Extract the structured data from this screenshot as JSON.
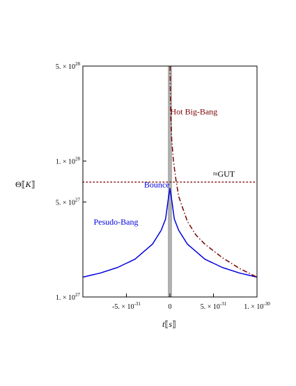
{
  "chart_data": {
    "type": "line",
    "yscale": "log",
    "xlim": [
      -1e-30,
      1e-30
    ],
    "ylim": [
      1e+27,
      5e+28
    ],
    "grid": false,
    "xlabel": {
      "main": "t",
      "unit": "s"
    },
    "ylabel": {
      "main": "Θ",
      "unit": "K"
    },
    "x_ticks": [
      {
        "value": -5e-31,
        "mant": "-5. × 10",
        "exp": "-31"
      },
      {
        "value": 0,
        "mant": "0",
        "exp": ""
      },
      {
        "value": 5e-31,
        "mant": "5. × 10",
        "exp": "-31"
      },
      {
        "value": 1e-30,
        "mant": "1. × 10",
        "exp": "-30"
      }
    ],
    "y_ticks": [
      {
        "value": 1e+27,
        "mant": "1. × 10",
        "exp": "27"
      },
      {
        "value": 5e+27,
        "mant": "5. × 10",
        "exp": "27"
      },
      {
        "value": 1e+28,
        "mant": "1. × 10",
        "exp": "28"
      },
      {
        "value": 5e+28,
        "mant": "5. × 10",
        "exp": "28"
      }
    ],
    "series": [
      {
        "name": "Pesudo-Bang",
        "color": "#0000dd",
        "style": "solid",
        "points": [
          [
            -1e-30,
            1.4e+27
          ],
          [
            -8e-31,
            1.5e+27
          ],
          [
            -6e-31,
            1.65e+27
          ],
          [
            -4e-31,
            1.9e+27
          ],
          [
            -2e-31,
            2.45e+27
          ],
          [
            -1e-31,
            3.1e+27
          ],
          [
            -5e-32,
            3.75e+27
          ],
          [
            -2e-32,
            5.2e+27
          ],
          [
            0,
            6.3e+27
          ],
          [
            2e-32,
            5.2e+27
          ],
          [
            5e-32,
            3.75e+27
          ],
          [
            1e-31,
            3.1e+27
          ],
          [
            2e-31,
            2.45e+27
          ],
          [
            4e-31,
            1.9e+27
          ],
          [
            6e-31,
            1.65e+27
          ],
          [
            8e-31,
            1.5e+27
          ],
          [
            1e-30,
            1.4e+27
          ]
        ]
      },
      {
        "name": "Hot Big-Bang",
        "color": "#7a0000",
        "style": "dashdot",
        "points": [
          [
            2e-33,
            5e+28
          ],
          [
            5e-33,
            3e+28
          ],
          [
            1e-32,
            2.1e+28
          ],
          [
            2e-32,
            1.45e+28
          ],
          [
            4e-32,
            1e+28
          ],
          [
            7e-32,
            7.2e+27
          ],
          [
            1e-31,
            5.5e+27
          ],
          [
            2e-31,
            3.6e+27
          ],
          [
            3e-31,
            2.85e+27
          ],
          [
            4e-31,
            2.45e+27
          ],
          [
            6e-31,
            1.95e+27
          ],
          [
            8e-31,
            1.62e+27
          ],
          [
            1e-30,
            1.4e+27
          ]
        ]
      }
    ],
    "reference_lines": [
      {
        "label": "≈GUT",
        "y": 7e+27,
        "color": "#7a0000",
        "style": "dotted"
      },
      {
        "label": "",
        "x": 0,
        "color": "#b0b0b0",
        "style": "band"
      }
    ],
    "annotations": [
      {
        "text": "Hot Big-Bang",
        "color": "#7a0000",
        "x": 4e-33,
        "y": 2.2e+28,
        "anchor": "start"
      },
      {
        "text": "≈GUT",
        "color": "#000000",
        "x": 6.2e-31,
        "y": 7.7e+27,
        "anchor": "middle"
      },
      {
        "text": "Bounce",
        "color": "#0000dd",
        "x": -4e-33,
        "y": 6.4e+27,
        "anchor": "end"
      },
      {
        "text": "Pesudo-Bang",
        "color": "#0000dd",
        "x": -6.2e-31,
        "y": 3.4e+27,
        "anchor": "middle"
      }
    ]
  }
}
